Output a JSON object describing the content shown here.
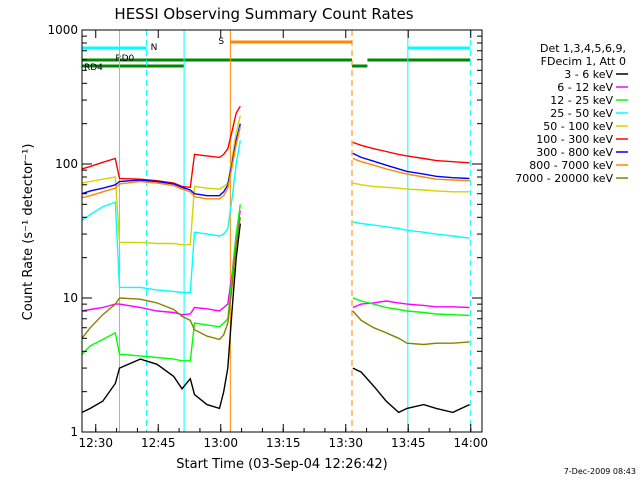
{
  "chart_data": {
    "type": "line",
    "title": "HESSI Observing Summary Count Rates",
    "xlabel": "Start Time (03-Sep-04 12:26:42)",
    "ylabel": "Count Rate (s⁻¹ detector⁻¹)",
    "yscale": "log",
    "xlim": [
      0,
      96
    ],
    "ylim": [
      1,
      1000
    ],
    "x_ticks": [
      {
        "x": 3.3,
        "label": "12:30"
      },
      {
        "x": 18.3,
        "label": "12:45"
      },
      {
        "x": 33.3,
        "label": "13:00"
      },
      {
        "x": 48.3,
        "label": "13:15"
      },
      {
        "x": 63.3,
        "label": "13:30"
      },
      {
        "x": 78.3,
        "label": "13:45"
      },
      {
        "x": 93.3,
        "label": "14:00"
      }
    ],
    "y_ticks": [
      {
        "y": 1,
        "label": "1"
      },
      {
        "y": 10,
        "label": "10"
      },
      {
        "y": 100,
        "label": "100"
      },
      {
        "y": 1000,
        "label": "1000"
      }
    ],
    "legend": {
      "placement": "right",
      "header": [
        "Det 1,3,4,5,6,9,",
        "FDecim 1, Att 0"
      ]
    },
    "series": [
      {
        "name": "3 - 6 keV",
        "color": "#000000",
        "x": [
          0,
          2,
          5,
          8,
          9,
          14,
          18,
          22,
          24,
          26,
          27,
          30,
          33,
          34,
          35,
          36,
          37,
          38,
          65,
          67,
          70,
          73,
          76,
          78,
          82,
          85,
          89,
          93
        ],
        "y": [
          1.4,
          1.5,
          1.7,
          2.3,
          3,
          3.5,
          3.2,
          2.6,
          2.1,
          2.5,
          1.9,
          1.6,
          1.5,
          2.0,
          3.0,
          8.0,
          20,
          36,
          3.0,
          2.8,
          2.2,
          1.7,
          1.4,
          1.5,
          1.6,
          1.5,
          1.4,
          1.6
        ]
      },
      {
        "name": "6 - 12 keV",
        "color": "#ff00ff",
        "x": [
          0,
          2,
          5,
          8,
          9,
          14,
          18,
          22,
          24,
          26,
          27,
          30,
          33,
          34,
          35,
          36,
          37,
          38,
          65,
          67,
          70,
          73,
          76,
          78,
          82,
          85,
          89,
          93
        ],
        "y": [
          8,
          8.2,
          8.5,
          9,
          9,
          8.5,
          8.0,
          7.8,
          7.5,
          7.6,
          8.5,
          8.3,
          8,
          8.5,
          9,
          15,
          30,
          45,
          8.5,
          9,
          9.2,
          9.5,
          9.2,
          9,
          8.8,
          8.6,
          8.6,
          8.5
        ]
      },
      {
        "name": "12 - 25 keV",
        "color": "#00ff00",
        "x": [
          0,
          2,
          5,
          8,
          9,
          14,
          18,
          22,
          24,
          26,
          27,
          30,
          33,
          34,
          35,
          36,
          37,
          38,
          65,
          67,
          70,
          73,
          76,
          78,
          82,
          85,
          89,
          93
        ],
        "y": [
          3.8,
          4.4,
          4.9,
          5.5,
          3.8,
          3.7,
          3.6,
          3.5,
          3.4,
          3.4,
          6.5,
          6.3,
          6.1,
          6.5,
          7,
          14,
          30,
          50,
          10,
          9.5,
          9,
          8.5,
          8.2,
          8,
          7.8,
          7.6,
          7.5,
          7.4
        ]
      },
      {
        "name": "25 - 50 keV",
        "color": "#00ffff",
        "x": [
          0,
          2,
          5,
          8,
          9,
          14,
          18,
          22,
          24,
          26,
          27,
          30,
          33,
          34,
          35,
          36,
          37,
          38,
          65,
          67,
          70,
          73,
          76,
          78,
          82,
          85,
          89,
          93
        ],
        "y": [
          38,
          42,
          48,
          52,
          12,
          12,
          11.5,
          11.2,
          11,
          11,
          31,
          30,
          29,
          30,
          33,
          55,
          100,
          150,
          37,
          36,
          35,
          34,
          33,
          32,
          31,
          30,
          29,
          28
        ]
      },
      {
        "name": "50 - 100 keV",
        "color": "#d4d400",
        "x": [
          0,
          2,
          5,
          8,
          9,
          14,
          18,
          22,
          24,
          26,
          27,
          30,
          33,
          34,
          35,
          36,
          37,
          38,
          65,
          67,
          70,
          73,
          76,
          78,
          82,
          85,
          89,
          93
        ],
        "y": [
          72,
          74,
          77,
          80,
          26,
          26,
          25.5,
          25.5,
          25,
          25,
          68,
          66,
          65,
          68,
          72,
          110,
          170,
          230,
          72,
          70,
          68,
          67,
          66,
          65,
          64,
          63,
          62,
          62
        ]
      },
      {
        "name": "100 - 300 keV",
        "color": "#ff0000",
        "x": [
          0,
          2,
          5,
          8,
          9,
          14,
          18,
          22,
          24,
          26,
          27,
          30,
          33,
          34,
          35,
          36,
          37,
          38,
          65,
          67,
          70,
          73,
          76,
          78,
          82,
          85,
          89,
          93
        ],
        "y": [
          92,
          96,
          103,
          110,
          78,
          77,
          75,
          72,
          68,
          67,
          118,
          115,
          112,
          118,
          130,
          175,
          240,
          270,
          145,
          138,
          130,
          124,
          118,
          115,
          110,
          106,
          104,
          102
        ]
      },
      {
        "name": "300 - 800 keV",
        "color": "#0000ff",
        "x": [
          0,
          2,
          5,
          8,
          9,
          14,
          18,
          22,
          24,
          26,
          27,
          30,
          33,
          34,
          35,
          36,
          37,
          38,
          65,
          67,
          70,
          73,
          76,
          78,
          82,
          85,
          89,
          93
        ],
        "y": [
          60,
          63,
          66,
          70,
          74,
          76,
          74,
          71,
          67,
          64,
          60,
          58,
          58,
          62,
          70,
          100,
          150,
          200,
          120,
          112,
          105,
          98,
          92,
          88,
          84,
          81,
          79,
          78
        ]
      },
      {
        "name": "800 - 7000 keV",
        "color": "#ff8800",
        "x": [
          0,
          2,
          5,
          8,
          9,
          14,
          18,
          22,
          24,
          26,
          27,
          30,
          33,
          34,
          35,
          36,
          37,
          38,
          65,
          67,
          70,
          73,
          76,
          78,
          82,
          85,
          89,
          93
        ],
        "y": [
          56,
          58,
          62,
          66,
          71,
          74,
          72,
          69,
          65,
          62,
          57,
          55,
          55,
          58,
          66,
          95,
          140,
          190,
          110,
          104,
          98,
          92,
          87,
          84,
          80,
          77,
          76,
          75
        ]
      },
      {
        "name": "7000 - 20000 keV",
        "color": "#8a8000",
        "x": [
          0,
          2,
          5,
          8,
          9,
          14,
          18,
          22,
          24,
          26,
          27,
          30,
          33,
          34,
          35,
          36,
          37,
          38,
          65,
          67,
          70,
          73,
          76,
          78,
          82,
          85,
          89,
          93
        ],
        "y": [
          5.0,
          6.0,
          7.5,
          9,
          10,
          9.8,
          9.2,
          8.2,
          7.3,
          6.8,
          5.8,
          5.2,
          4.9,
          5.3,
          6.5,
          12,
          25,
          40,
          8.0,
          6.8,
          6.0,
          5.5,
          5.0,
          4.6,
          4.5,
          4.6,
          4.6,
          4.7
        ]
      }
    ],
    "annotations": {
      "vertical_lines": [
        {
          "x": 0,
          "color": "#00ffff",
          "style": "solid"
        },
        {
          "x": 9,
          "color": "#00ffff",
          "style": "solid"
        },
        {
          "x": 15.5,
          "color": "#00ffff",
          "style": "dashed"
        },
        {
          "x": 24.5,
          "color": "#00ffff",
          "style": "solid"
        },
        {
          "x": 35.6,
          "color": "#ff8800",
          "style": "solid"
        },
        {
          "x": 64.8,
          "color": "#ff8800",
          "style": "dashed"
        },
        {
          "x": 78.2,
          "color": "#00ffff",
          "style": "solid"
        },
        {
          "x": 93.2,
          "color": "#00ffff",
          "style": "dashed"
        }
      ],
      "flag_bars": [
        {
          "label": "N",
          "color": "#00ffff",
          "segments": [
            [
              0,
              15.5
            ],
            [
              78.2,
              93.2
            ]
          ],
          "level": 1
        },
        {
          "label": "S",
          "color": "#ff8800",
          "segments": [
            [
              35.6,
              64.8
            ]
          ],
          "level": 0
        },
        {
          "label": "RD0",
          "color": "#008800",
          "segments": [
            [
              0,
              24.5
            ],
            [
              24.5,
              64.8
            ],
            [
              68.5,
              93.2
            ]
          ],
          "level": 2
        },
        {
          "label": "RD4",
          "color": "#008800",
          "segments": [
            [
              0,
              24.5
            ],
            [
              64.8,
              68.5
            ]
          ],
          "level": 3
        }
      ]
    },
    "footer": "7-Dec-2009 08:43"
  }
}
